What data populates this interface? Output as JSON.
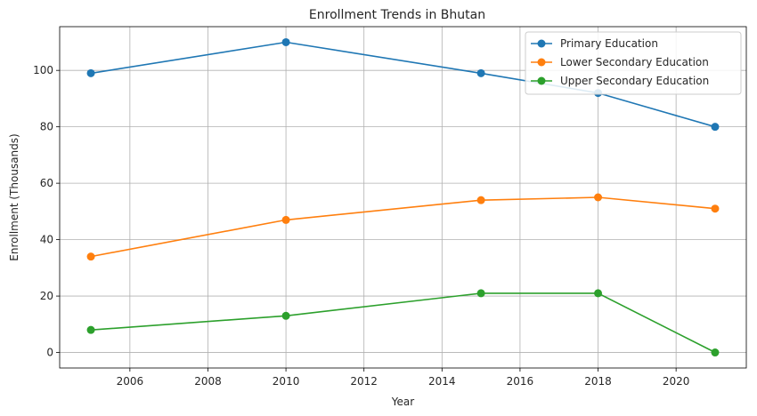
{
  "chart_data": {
    "type": "line",
    "title": "Enrollment Trends in Bhutan",
    "xlabel": "Year",
    "ylabel": "Enrollment (Thousands)",
    "x": [
      2005,
      2010,
      2015,
      2018,
      2021
    ],
    "xlim": [
      2004.2,
      2021.8
    ],
    "ylim": [
      -5.5,
      115.5
    ],
    "x_ticks": [
      2006,
      2008,
      2010,
      2012,
      2014,
      2016,
      2018,
      2020
    ],
    "y_ticks": [
      0,
      20,
      40,
      60,
      80,
      100
    ],
    "grid": true,
    "legend_position": "top-right",
    "series": [
      {
        "name": "Primary Education",
        "color": "#1f77b4",
        "marker": "circle",
        "values": [
          99,
          110,
          99,
          92,
          80
        ]
      },
      {
        "name": "Lower Secondary Education",
        "color": "#ff7f0e",
        "marker": "circle",
        "values": [
          34,
          47,
          54,
          55,
          51
        ]
      },
      {
        "name": "Upper Secondary Education",
        "color": "#2ca02c",
        "marker": "circle",
        "values": [
          8,
          13,
          21,
          21,
          0
        ]
      }
    ]
  }
}
